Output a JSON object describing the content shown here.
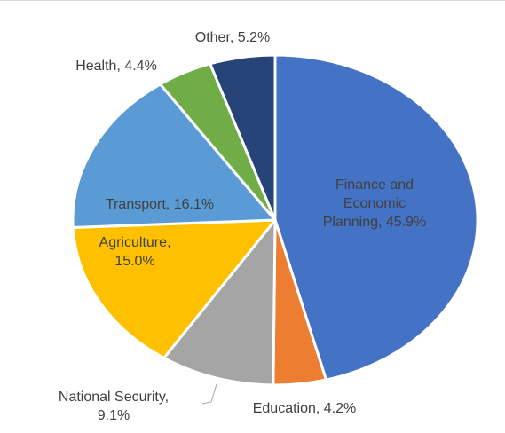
{
  "chart_data": {
    "type": "pie",
    "title": "",
    "start_angle_deg": 0,
    "direction": "clockwise",
    "slices": [
      {
        "name": "Finance and Economic Planning",
        "value": 45.9,
        "label_lines": [
          "Finance and",
          "Economic",
          "Planning, 45.9%"
        ],
        "color": "#4472C4"
      },
      {
        "name": "Education",
        "value": 4.2,
        "label_lines": [
          "Education, 4.2%"
        ],
        "color": "#ED7D31"
      },
      {
        "name": "National Security",
        "value": 9.1,
        "label_lines": [
          "National Security,",
          "9.1%"
        ],
        "color": "#A5A5A5"
      },
      {
        "name": "Agriculture",
        "value": 15.0,
        "label_lines": [
          "Agriculture,",
          "15.0%"
        ],
        "color": "#FFC000"
      },
      {
        "name": "Transport",
        "value": 16.1,
        "label_lines": [
          "Transport, 16.1%"
        ],
        "color": "#5B9BD5"
      },
      {
        "name": "Health",
        "value": 4.4,
        "label_lines": [
          "Health, 4.4%"
        ],
        "color": "#70AD47"
      },
      {
        "name": "Other",
        "value": 5.2,
        "label_lines": [
          "Other, 5.2%"
        ],
        "color": "#264478"
      }
    ]
  }
}
